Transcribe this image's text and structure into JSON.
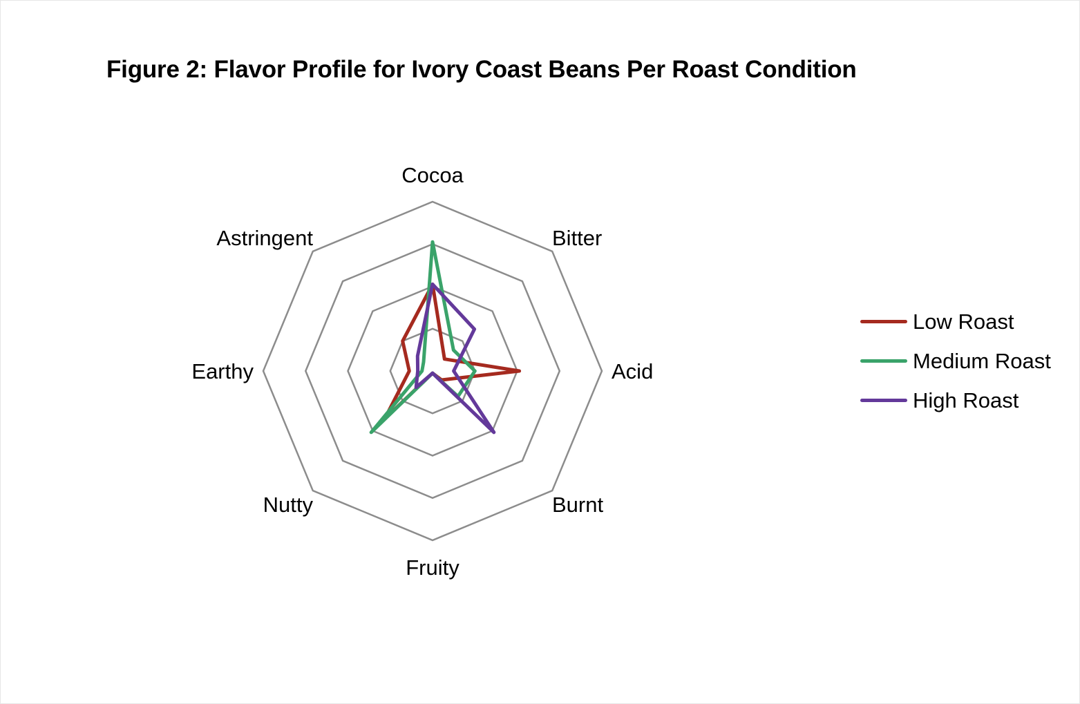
{
  "chart_data": {
    "type": "radar",
    "title": "Figure 2: Flavor Profile for Ivory Coast Beans Per Roast Condition",
    "axes": [
      "Cocoa",
      "Bitter",
      "Acid",
      "Burnt",
      "Fruity",
      "Nutty",
      "Earthy",
      "Astringent"
    ],
    "rmax": 4,
    "rings": [
      1,
      2,
      3,
      4
    ],
    "gridlines": true,
    "legend_position": "right",
    "series": [
      {
        "name": "Low Roast",
        "color": "#a52a1f",
        "values": [
          2.05,
          0.4,
          2.05,
          0.3,
          0.05,
          1.6,
          0.55,
          1.0
        ]
      },
      {
        "name": "Medium Roast",
        "color": "#3aa36a",
        "values": [
          3.05,
          0.7,
          1.0,
          0.85,
          0.05,
          2.05,
          0.25,
          0.3
        ]
      },
      {
        "name": "High Roast",
        "color": "#63399a",
        "values": [
          2.05,
          1.4,
          0.5,
          2.05,
          0.05,
          0.55,
          0.35,
          0.5
        ]
      }
    ]
  }
}
